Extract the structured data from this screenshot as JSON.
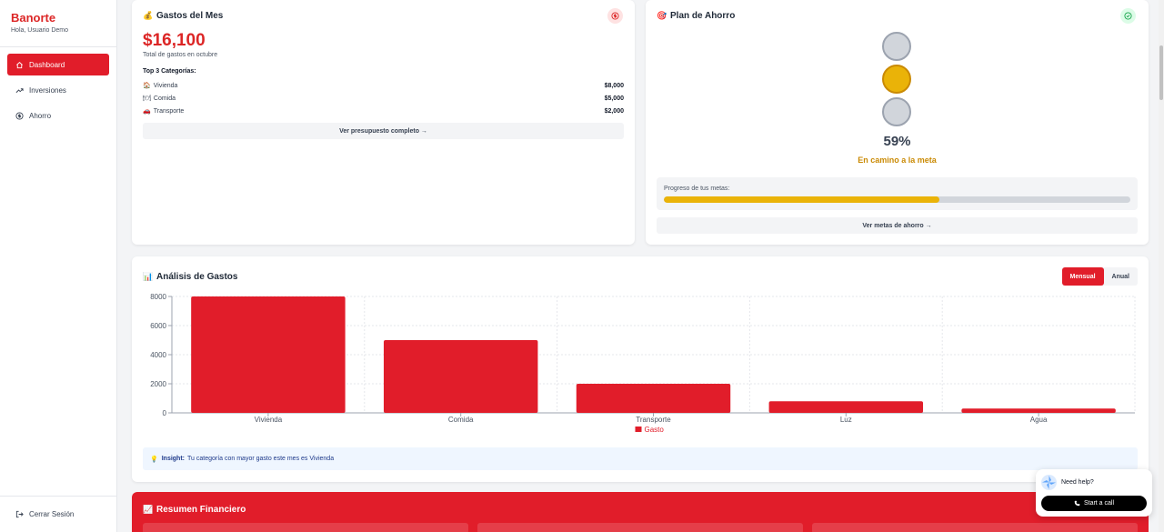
{
  "sidebar": {
    "brand": "Banorte",
    "greeting": "Hola, Usuario Demo",
    "items": [
      {
        "label": "Dashboard",
        "icon": "home-icon",
        "active": true
      },
      {
        "label": "Inversiones",
        "icon": "trend-up-icon",
        "active": false
      },
      {
        "label": "Ahorro",
        "icon": "coin-icon",
        "active": false
      }
    ],
    "logout_label": "Cerrar Sesión"
  },
  "gastos": {
    "title": "Gastos del Mes",
    "amount": "$16,100",
    "subtitle": "Total de gastos en octubre",
    "top3_title": "Top 3 Categorías:",
    "categories": [
      {
        "name": "Vivienda",
        "amount": "$8,000"
      },
      {
        "name": "Comida",
        "amount": "$5,000"
      },
      {
        "name": "Transporte",
        "amount": "$2,000"
      }
    ],
    "button": "Ver presupuesto completo →"
  },
  "ahorro": {
    "title": "Plan de Ahorro",
    "percent": "59%",
    "status": "En camino a la meta",
    "progress_label": "Progreso de tus metas:",
    "progress": 0.59,
    "button": "Ver metas de ahorro →"
  },
  "analisis": {
    "title": "Análisis de Gastos",
    "toggle_monthly": "Mensual",
    "toggle_annual": "Anual",
    "insight_label": "Insight:",
    "insight_text": "Tu categoría con mayor gasto este mes es Vivienda"
  },
  "chart_data": {
    "type": "bar",
    "categories": [
      "Vivienda",
      "Comida",
      "Transporte",
      "Luz",
      "Agua"
    ],
    "series": [
      {
        "name": "Gasto",
        "values": [
          8000,
          5000,
          2000,
          800,
          300
        ],
        "color": "#e11d2a"
      }
    ],
    "yticks": [
      0,
      2000,
      4000,
      6000,
      8000
    ],
    "ylim": [
      0,
      8000
    ],
    "legend": "bottom",
    "grid": true
  },
  "resumen": {
    "title": "Resumen Financiero"
  },
  "help": {
    "question": "Need help?",
    "button": "Start a call"
  },
  "colors": {
    "brand": "#e11d2a",
    "accent_yellow": "#eab308",
    "text_dark": "#1f2937"
  }
}
